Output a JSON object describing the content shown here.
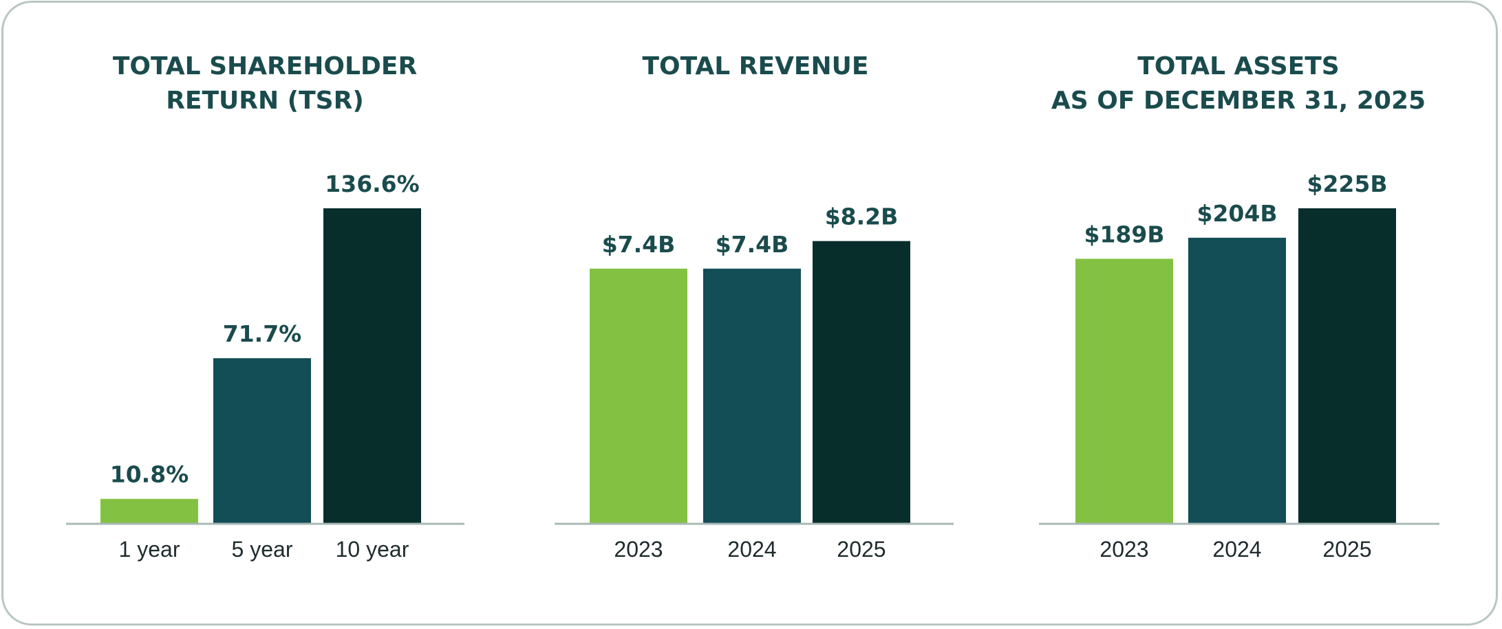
{
  "colors": [
    "#83c142",
    "#134d56",
    "#082e2c"
  ],
  "axis_color": "#a8b8b6",
  "chart_data": [
    {
      "type": "bar",
      "title": [
        "TOTAL SHAREHOLDER",
        "RETURN (TSR)"
      ],
      "categories": [
        "1 year",
        "5 year",
        "10 year"
      ],
      "values": [
        10.8,
        71.7,
        136.6
      ],
      "labels": [
        "10.8%",
        "71.7%",
        "136.6%"
      ],
      "ylim": [
        0,
        136.6
      ],
      "xlabel": "",
      "ylabel": ""
    },
    {
      "type": "bar",
      "title": [
        "TOTAL REVENUE"
      ],
      "categories": [
        "2023",
        "2024",
        "2025"
      ],
      "values": [
        7.4,
        7.4,
        8.2
      ],
      "labels": [
        "$7.4B",
        "$7.4B",
        "$8.2B"
      ],
      "ylim": [
        0,
        9.15
      ],
      "xlabel": "",
      "ylabel": ""
    },
    {
      "type": "bar",
      "title": [
        "TOTAL ASSETS",
        "AS OF DECEMBER 31, 2025"
      ],
      "categories": [
        "2023",
        "2024",
        "2025"
      ],
      "values": [
        189,
        204,
        225
      ],
      "labels": [
        "$189B",
        "$204B",
        "$225B"
      ],
      "ylim": [
        0,
        225
      ],
      "xlabel": "",
      "ylabel": ""
    }
  ]
}
